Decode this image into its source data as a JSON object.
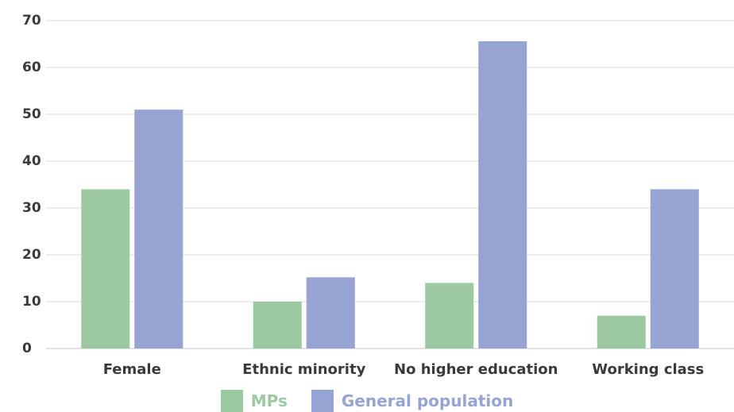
{
  "chart_data": {
    "type": "bar",
    "categories": [
      "Female",
      "Ethnic minority",
      "No higher education",
      "Working class"
    ],
    "series": [
      {
        "name": "MPs",
        "color": "#9dc9a2",
        "values": [
          34,
          10,
          14,
          7
        ]
      },
      {
        "name": "General population",
        "color": "#97a4d3",
        "values": [
          51,
          15.2,
          65.6,
          34
        ]
      }
    ],
    "title": "",
    "xlabel": "",
    "ylabel": "",
    "ylim": [
      0,
      70
    ],
    "yticks": [
      0,
      10,
      20,
      30,
      40,
      50,
      60,
      70
    ],
    "grid": true,
    "legend_position": "bottom"
  }
}
